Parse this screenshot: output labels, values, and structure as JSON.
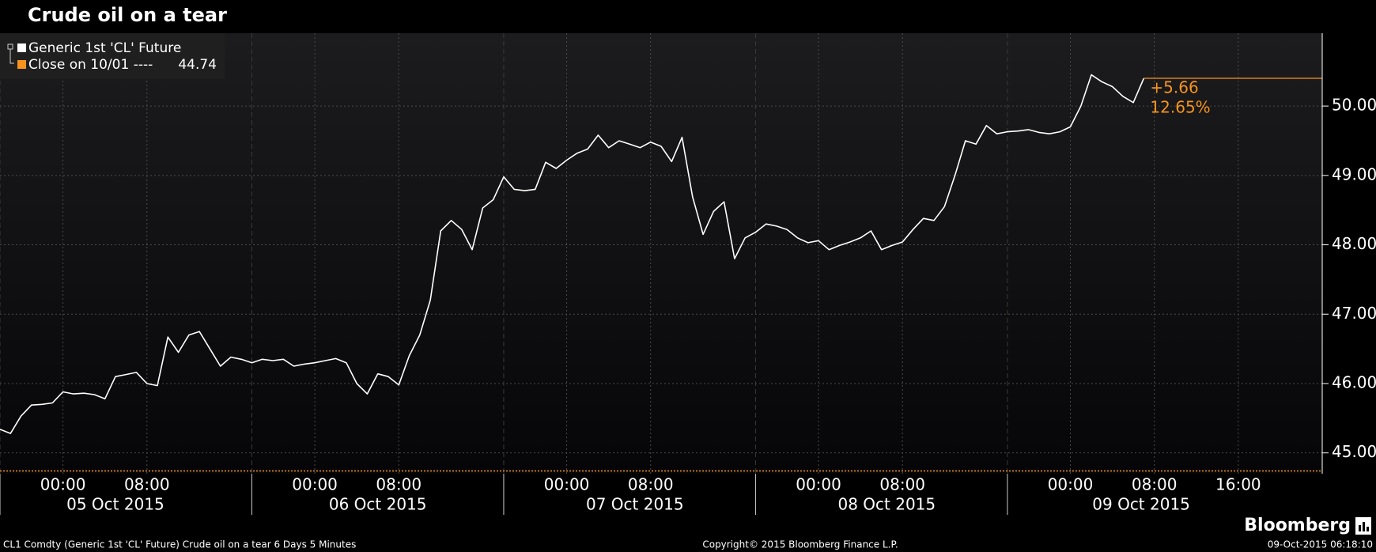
{
  "chart_data": {
    "type": "line",
    "title": "Crude oil on a tear",
    "x": [
      "2015-10-04 18:00",
      "2015-10-04 19:00",
      "2015-10-04 20:00",
      "2015-10-04 21:00",
      "2015-10-04 22:00",
      "2015-10-04 23:00",
      "2015-10-05 00:00",
      "2015-10-05 01:00",
      "2015-10-05 02:00",
      "2015-10-05 03:00",
      "2015-10-05 04:00",
      "2015-10-05 05:00",
      "2015-10-05 06:00",
      "2015-10-05 07:00",
      "2015-10-05 08:00",
      "2015-10-05 09:00",
      "2015-10-05 10:00",
      "2015-10-05 11:00",
      "2015-10-05 12:00",
      "2015-10-05 13:00",
      "2015-10-05 14:00",
      "2015-10-05 15:00",
      "2015-10-05 16:00",
      "2015-10-05 17:00",
      "2015-10-05 18:00",
      "2015-10-05 19:00",
      "2015-10-05 20:00",
      "2015-10-05 21:00",
      "2015-10-05 22:00",
      "2015-10-05 23:00",
      "2015-10-06 00:00",
      "2015-10-06 01:00",
      "2015-10-06 02:00",
      "2015-10-06 03:00",
      "2015-10-06 04:00",
      "2015-10-06 05:00",
      "2015-10-06 06:00",
      "2015-10-06 07:00",
      "2015-10-06 08:00",
      "2015-10-06 09:00",
      "2015-10-06 10:00",
      "2015-10-06 11:00",
      "2015-10-06 12:00",
      "2015-10-06 13:00",
      "2015-10-06 14:00",
      "2015-10-06 15:00",
      "2015-10-06 16:00",
      "2015-10-06 17:00",
      "2015-10-06 18:00",
      "2015-10-06 19:00",
      "2015-10-06 20:00",
      "2015-10-06 21:00",
      "2015-10-06 22:00",
      "2015-10-06 23:00",
      "2015-10-07 00:00",
      "2015-10-07 01:00",
      "2015-10-07 02:00",
      "2015-10-07 03:00",
      "2015-10-07 04:00",
      "2015-10-07 05:00",
      "2015-10-07 06:00",
      "2015-10-07 07:00",
      "2015-10-07 08:00",
      "2015-10-07 09:00",
      "2015-10-07 10:00",
      "2015-10-07 11:00",
      "2015-10-07 12:00",
      "2015-10-07 13:00",
      "2015-10-07 14:00",
      "2015-10-07 15:00",
      "2015-10-07 16:00",
      "2015-10-07 17:00",
      "2015-10-07 18:00",
      "2015-10-07 19:00",
      "2015-10-07 20:00",
      "2015-10-07 21:00",
      "2015-10-07 22:00",
      "2015-10-07 23:00",
      "2015-10-08 00:00",
      "2015-10-08 01:00",
      "2015-10-08 02:00",
      "2015-10-08 03:00",
      "2015-10-08 04:00",
      "2015-10-08 05:00",
      "2015-10-08 06:00",
      "2015-10-08 07:00",
      "2015-10-08 08:00",
      "2015-10-08 09:00",
      "2015-10-08 10:00",
      "2015-10-08 11:00",
      "2015-10-08 12:00",
      "2015-10-08 13:00",
      "2015-10-08 14:00",
      "2015-10-08 15:00",
      "2015-10-08 16:00",
      "2015-10-08 17:00",
      "2015-10-08 18:00",
      "2015-10-08 19:00",
      "2015-10-08 20:00",
      "2015-10-08 21:00",
      "2015-10-08 22:00",
      "2015-10-08 23:00",
      "2015-10-09 00:00",
      "2015-10-09 01:00",
      "2015-10-09 02:00",
      "2015-10-09 03:00",
      "2015-10-09 04:00",
      "2015-10-09 05:00",
      "2015-10-09 06:00",
      "2015-10-09 07:00"
    ],
    "series": [
      {
        "name": "Generic 1st 'CL' Future",
        "color": "#ffffff",
        "values": [
          45.34,
          45.28,
          45.53,
          45.69,
          45.7,
          45.72,
          45.88,
          45.85,
          45.86,
          45.84,
          45.78,
          46.1,
          46.13,
          46.16,
          46.0,
          45.97,
          46.67,
          46.45,
          46.7,
          46.75,
          46.5,
          46.25,
          46.38,
          46.35,
          46.3,
          46.35,
          46.33,
          46.35,
          46.25,
          46.28,
          46.3,
          46.33,
          46.36,
          46.3,
          46.0,
          45.85,
          46.14,
          46.1,
          45.98,
          46.4,
          46.7,
          47.2,
          48.2,
          48.35,
          48.22,
          47.93,
          48.53,
          48.65,
          48.98,
          48.8,
          48.78,
          48.8,
          49.19,
          49.1,
          49.22,
          49.32,
          49.38,
          49.58,
          49.4,
          49.5,
          49.45,
          49.4,
          49.48,
          49.42,
          49.2,
          49.55,
          48.69,
          48.15,
          48.48,
          48.62,
          47.8,
          48.1,
          48.18,
          48.3,
          48.27,
          48.22,
          48.1,
          48.03,
          48.06,
          47.93,
          47.99,
          48.04,
          48.1,
          48.2,
          47.93,
          47.99,
          48.04,
          48.22,
          48.38,
          48.35,
          48.55,
          49.0,
          49.5,
          49.45,
          49.72,
          49.6,
          49.63,
          49.64,
          49.66,
          49.62,
          49.6,
          49.63,
          49.7,
          50.0,
          50.45,
          50.35,
          50.28,
          50.14,
          50.05,
          50.4
        ]
      }
    ],
    "reference": {
      "label": "Close on 10/01 ----",
      "value": 44.74,
      "color": "#f7931e"
    },
    "change": {
      "value": 5.66,
      "label": "+5.66"
    },
    "change_pct": {
      "value": 12.65,
      "label": "12.65%"
    },
    "xlim": [
      "2015-10-04 18:00",
      "2015-10-10 00:00"
    ],
    "xticks": [
      {
        "value": "2015-10-05 00:00",
        "label": "00:00"
      },
      {
        "value": "2015-10-05 08:00",
        "label": "08:00"
      },
      {
        "value": "2015-10-06 00:00",
        "label": "00:00"
      },
      {
        "value": "2015-10-06 08:00",
        "label": "08:00"
      },
      {
        "value": "2015-10-07 00:00",
        "label": "00:00"
      },
      {
        "value": "2015-10-07 08:00",
        "label": "08:00"
      },
      {
        "value": "2015-10-08 00:00",
        "label": "00:00"
      },
      {
        "value": "2015-10-08 08:00",
        "label": "08:00"
      },
      {
        "value": "2015-10-09 00:00",
        "label": "00:00"
      },
      {
        "value": "2015-10-09 08:00",
        "label": "08:00"
      },
      {
        "value": "2015-10-09 16:00",
        "label": "16:00"
      }
    ],
    "xticks_major": [
      {
        "value": "2015-10-05 05:00",
        "label": "05 Oct 2015"
      },
      {
        "value": "2015-10-06 06:00",
        "label": "06 Oct 2015"
      },
      {
        "value": "2015-10-07 06:30",
        "label": "07 Oct 2015"
      },
      {
        "value": "2015-10-08 06:30",
        "label": "08 Oct 2015"
      },
      {
        "value": "2015-10-09 06:45",
        "label": "09 Oct 2015"
      }
    ],
    "ylim": [
      44.7,
      51.05
    ],
    "yticks": [
      {
        "value": 45,
        "label": "45.00"
      },
      {
        "value": 46,
        "label": "46.00"
      },
      {
        "value": 47,
        "label": "47.00"
      },
      {
        "value": 48,
        "label": "48.00"
      },
      {
        "value": 49,
        "label": "49.00"
      },
      {
        "value": 50,
        "label": "50.00"
      }
    ],
    "y_axis_side": "right",
    "grid": true,
    "legend": "top-left"
  },
  "footer": {
    "left": "CL1 Comdty (Generic 1st 'CL' Future) Crude oil on a tear 6 Days 5 Minutes",
    "center": "Copyright© 2015 Bloomberg Finance L.P.",
    "right": "09-Oct-2015 06:18:10",
    "brand": "Bloomberg"
  }
}
